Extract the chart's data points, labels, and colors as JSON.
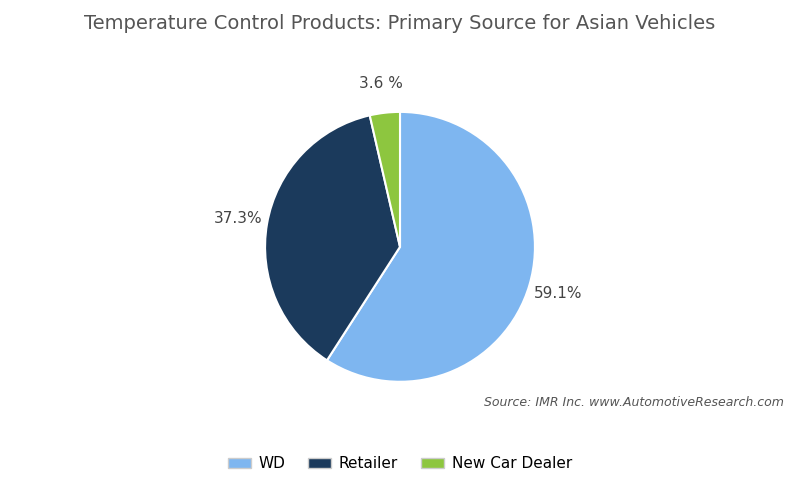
{
  "title": "Temperature Control Products: Primary Source for Asian Vehicles",
  "slices": [
    59.1,
    37.3,
    3.6
  ],
  "labels": [
    "WD",
    "Retailer",
    "New Car Dealer"
  ],
  "colors": [
    "#7EB6F0",
    "#1B3A5C",
    "#8DC63F"
  ],
  "autopct_labels": [
    "59.1%",
    "37.3%",
    "3.6 %"
  ],
  "source_text": "Source: IMR Inc. www.AutomotiveResearch.com",
  "background_color": "#FFFFFF",
  "title_fontsize": 14,
  "label_fontsize": 11,
  "legend_fontsize": 11,
  "source_fontsize": 9,
  "startangle": 90,
  "pct_distance": 1.22,
  "wedge_linewidth": 1.5,
  "wedge_edgecolor": "#FFFFFF",
  "title_color": "#555555",
  "label_color": "#444444"
}
